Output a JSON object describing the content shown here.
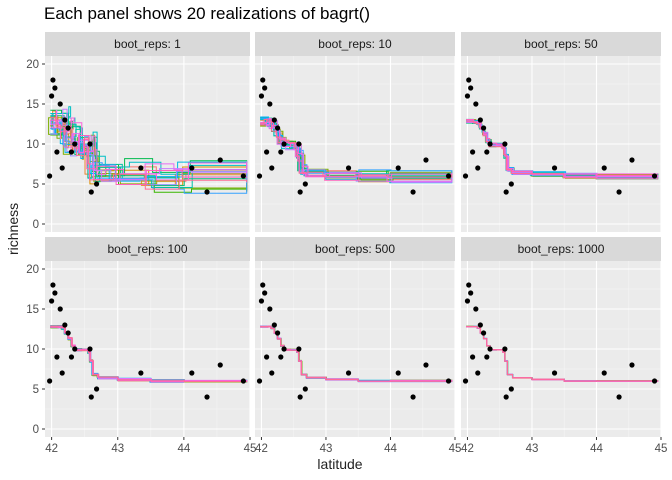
{
  "chart_data": {
    "type": "line",
    "title": "Each panel shows 20 realizations of bagrt()",
    "xlabel": "latitude",
    "ylabel": "richness",
    "facet_variable": "boot_reps",
    "xlim": [
      41.9,
      45.0
    ],
    "ylim": [
      -1,
      21
    ],
    "x_ticks": [
      42,
      43,
      44,
      45
    ],
    "y_ticks": [
      0,
      5,
      10,
      15,
      20
    ],
    "panels": [
      {
        "label": "boot_reps: 1",
        "spread": 1.0
      },
      {
        "label": "boot_reps: 10",
        "spread": 0.35
      },
      {
        "label": "boot_reps: 50",
        "spread": 0.15
      },
      {
        "label": "boot_reps: 100",
        "spread": 0.08
      },
      {
        "label": "boot_reps: 500",
        "spread": 0.04
      },
      {
        "label": "boot_reps: 1000",
        "spread": 0.02
      }
    ],
    "points": [
      [
        41.97,
        6
      ],
      [
        42.0,
        16
      ],
      [
        42.02,
        18
      ],
      [
        42.05,
        17
      ],
      [
        42.08,
        9
      ],
      [
        42.13,
        15
      ],
      [
        42.16,
        7
      ],
      [
        42.2,
        13
      ],
      [
        42.25,
        12
      ],
      [
        42.3,
        9
      ],
      [
        42.35,
        10
      ],
      [
        42.58,
        10
      ],
      [
        42.6,
        4
      ],
      [
        42.68,
        5
      ],
      [
        43.35,
        7
      ],
      [
        44.12,
        7
      ],
      [
        44.35,
        4
      ],
      [
        44.55,
        8
      ],
      [
        44.9,
        6
      ]
    ],
    "mean_curve": [
      [
        41.98,
        12.8
      ],
      [
        42.1,
        12.8
      ],
      [
        42.15,
        12.6
      ],
      [
        42.2,
        12.0
      ],
      [
        42.25,
        11.3
      ],
      [
        42.3,
        10.4
      ],
      [
        42.35,
        9.9
      ],
      [
        42.45,
        9.9
      ],
      [
        42.55,
        9.6
      ],
      [
        42.58,
        8.5
      ],
      [
        42.62,
        6.8
      ],
      [
        42.7,
        6.4
      ],
      [
        43.0,
        6.2
      ],
      [
        43.5,
        6.0
      ],
      [
        44.0,
        6.0
      ],
      [
        44.95,
        6.0
      ]
    ],
    "series_colors": [
      "#F8766D",
      "#EA8331",
      "#D89000",
      "#C09B00",
      "#A3A500",
      "#7CAE00",
      "#39B600",
      "#00BB4E",
      "#00BF7D",
      "#00C1A3",
      "#00BFC4",
      "#00BAE0",
      "#00B0F6",
      "#35A2FF",
      "#9590FF",
      "#C77CFF",
      "#E76BF3",
      "#FA62DB",
      "#FF62BC",
      "#FF6C91"
    ],
    "colors": {
      "panel_bg": "#EBEBEB",
      "strip_bg": "#D9D9D9",
      "grid_major": "#FFFFFF",
      "grid_minor": "#F5F5F5",
      "point": "#000000"
    }
  }
}
